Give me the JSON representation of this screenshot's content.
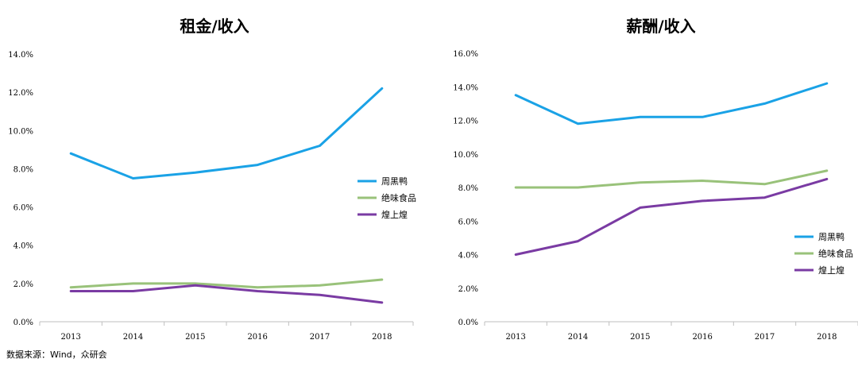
{
  "chart_data": [
    {
      "type": "line",
      "title": "租金/收入",
      "categories": [
        "2013",
        "2014",
        "2015",
        "2016",
        "2017",
        "2018"
      ],
      "ylim": [
        0,
        14
      ],
      "yticks": [
        "0.0%",
        "2.0%",
        "4.0%",
        "6.0%",
        "8.0%",
        "10.0%",
        "12.0%",
        "14.0%"
      ],
      "legend": "right",
      "series": [
        {
          "name": "周黑鸭",
          "color": "#1AA2E6",
          "values": [
            8.8,
            7.5,
            7.8,
            8.2,
            9.2,
            12.2
          ]
        },
        {
          "name": "绝味食品",
          "color": "#99C27A",
          "values": [
            1.8,
            2.0,
            2.0,
            1.8,
            1.9,
            2.2
          ]
        },
        {
          "name": "煌上煌",
          "color": "#7A3BA3",
          "values": [
            1.6,
            1.6,
            1.9,
            1.6,
            1.4,
            1.0
          ]
        }
      ]
    },
    {
      "type": "line",
      "title": "薪酬/收入",
      "categories": [
        "2013",
        "2014",
        "2015",
        "2016",
        "2017",
        "2018"
      ],
      "ylim": [
        0,
        16
      ],
      "yticks": [
        "0.0%",
        "2.0%",
        "4.0%",
        "6.0%",
        "8.0%",
        "10.0%",
        "12.0%",
        "14.0%",
        "16.0%"
      ],
      "legend": "bottom-right",
      "series": [
        {
          "name": "周黑鸭",
          "color": "#1AA2E6",
          "values": [
            13.5,
            11.8,
            12.2,
            12.2,
            13.0,
            14.2
          ]
        },
        {
          "name": "绝味食品",
          "color": "#99C27A",
          "values": [
            8.0,
            8.0,
            8.3,
            8.4,
            8.2,
            9.0
          ]
        },
        {
          "name": "煌上煌",
          "color": "#7A3BA3",
          "values": [
            4.0,
            4.8,
            6.8,
            7.2,
            7.4,
            8.5
          ]
        }
      ]
    }
  ],
  "source": "数据来源：Wind，众研会"
}
